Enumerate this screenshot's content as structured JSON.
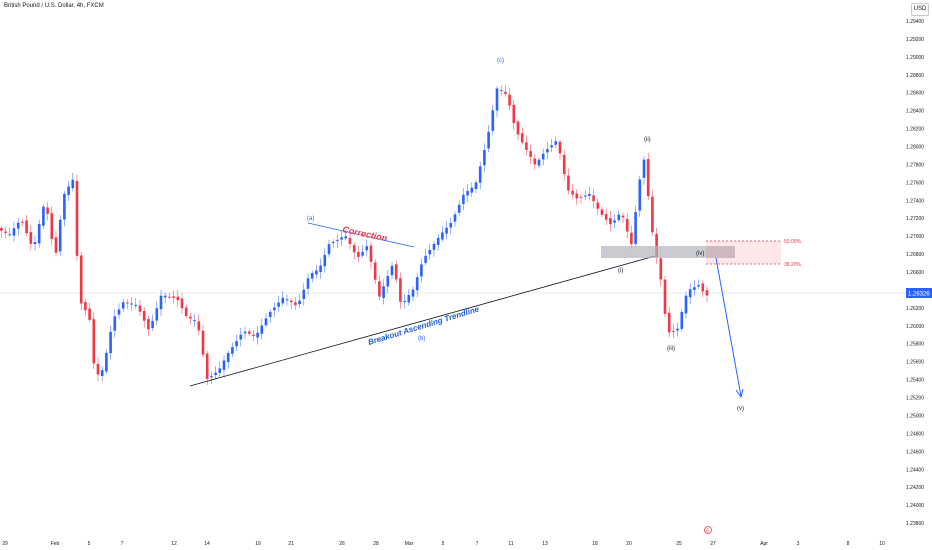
{
  "header": {
    "title": "British Pound / U.S. Dollar, 4h, FXCM",
    "currency_label": "USD"
  },
  "price_axis": {
    "labels": [
      "1.29400",
      "1.29200",
      "1.29000",
      "1.28800",
      "1.28600",
      "1.28400",
      "1.28200",
      "1.28000",
      "1.27800",
      "1.27600",
      "1.27400",
      "1.27200",
      "1.27000",
      "1.26800",
      "1.26600",
      "1.26400",
      "1.26200",
      "1.26000",
      "1.25800",
      "1.25600",
      "1.25400",
      "1.25200",
      "1.25000",
      "1.24800",
      "1.24600",
      "1.24400",
      "1.24200",
      "1.24000",
      "1.23800"
    ],
    "current_price": "1.26326"
  },
  "time_axis": {
    "labels": [
      "29",
      "Feb",
      "5",
      "7",
      "12",
      "14",
      "19",
      "21",
      "26",
      "28",
      "Mar",
      "5",
      "7",
      "11",
      "13",
      "18",
      "20",
      "25",
      "27",
      "Apr",
      "3",
      "8",
      "10"
    ]
  },
  "annotations": {
    "correction": "Correction",
    "trendline": "Breakout Ascending Trendline",
    "wave_a": "(a)",
    "wave_b": "(b)",
    "wave_c": "(c)",
    "wave_i": "(i)",
    "wave_ii": "(ii)",
    "wave_iii": "(iii)",
    "wave_iv": "(iv)",
    "wave_v": "(v)",
    "fib_50": "50.00%",
    "fib_382": "38.20%"
  },
  "colors": {
    "up": "#2962ff",
    "down": "#f23645",
    "correction_text": "#f23645",
    "trendline_text": "#1e5cd8",
    "axis_text": "#131722",
    "price_tag": "#2962ff"
  },
  "chart_data": {
    "type": "candlestick",
    "symbol": "GBPUSD",
    "timeframe": "4h",
    "ylim": [
      1.2377,
      1.2952
    ],
    "key_points": [
      {
        "label": "(a)",
        "price": 1.271
      },
      {
        "label": "(b)",
        "price": 1.2601
      },
      {
        "label": "(c)",
        "price": 1.2892
      },
      {
        "label": "(i)",
        "price": 1.2667
      },
      {
        "label": "(ii)",
        "price": 1.2804
      },
      {
        "label": "(iii)",
        "price": 1.2595
      },
      {
        "label": "(iv)",
        "price": 1.2675
      },
      {
        "label": "(v)",
        "price": 1.2508
      }
    ],
    "fib_levels": [
      {
        "label": "50.00%",
        "price": 1.2692
      },
      {
        "label": "38.20%",
        "price": 1.2665
      }
    ],
    "last_price": 1.26326
  }
}
